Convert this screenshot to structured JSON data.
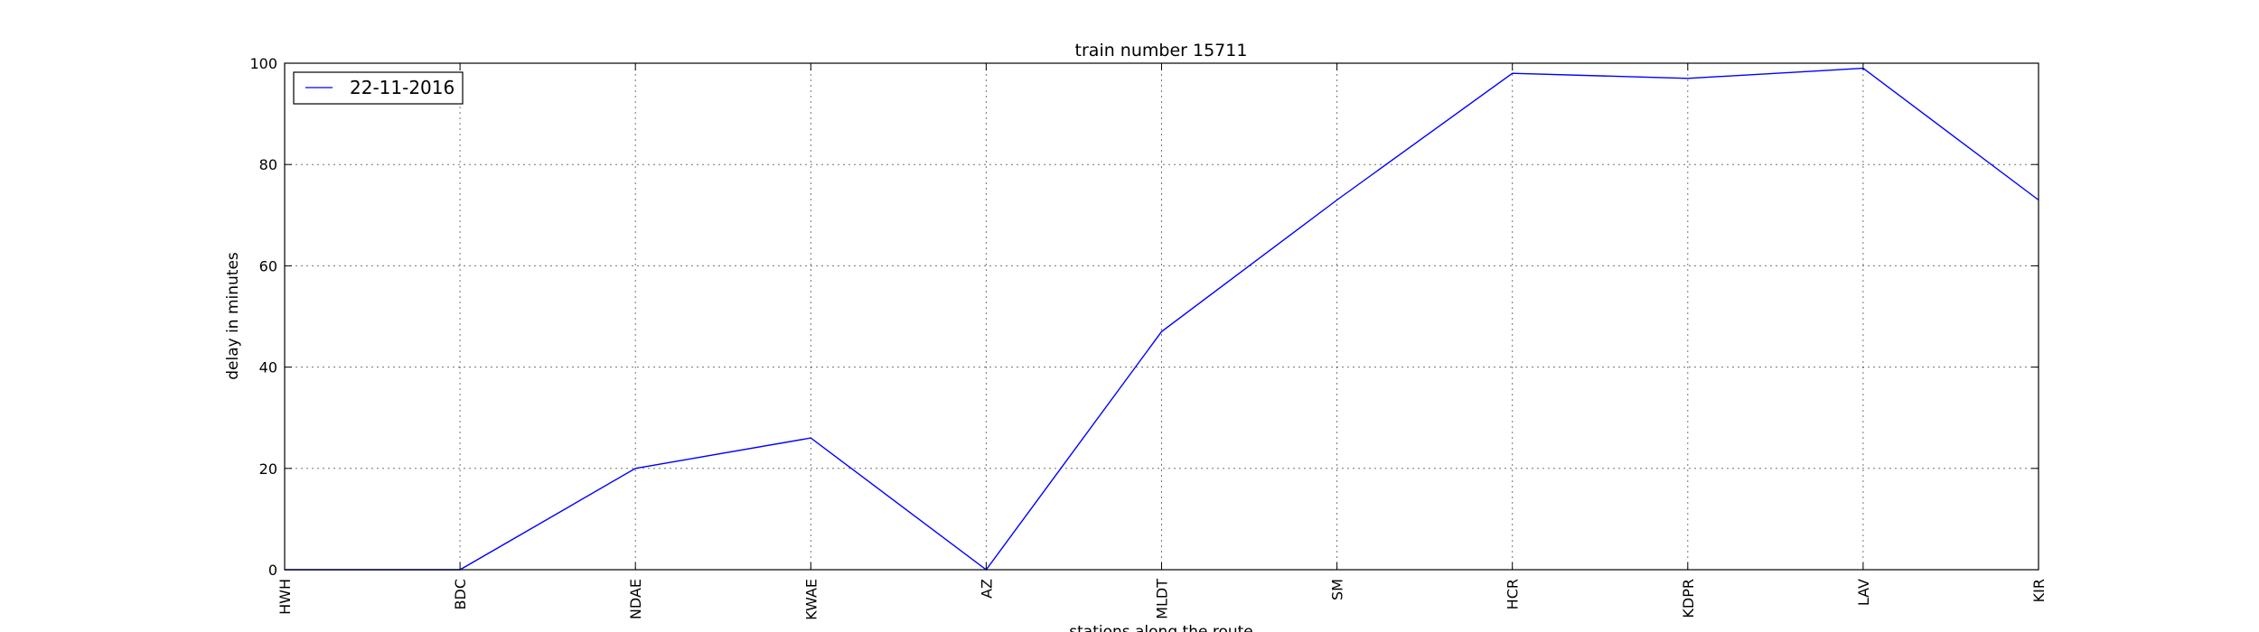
{
  "chart_data": {
    "type": "line",
    "title": "train number 15711",
    "xlabel": "stations along the route",
    "ylabel": "delay in minutes",
    "categories": [
      "HWH",
      "BDC",
      "NDAE",
      "KWAE",
      "AZ",
      "MLDT",
      "SM",
      "HCR",
      "KDPR",
      "LAV",
      "KIR"
    ],
    "series": [
      {
        "name": "22-11-2016",
        "color": "#0000ff",
        "values": [
          0,
          0,
          20,
          26,
          0,
          47,
          73,
          98,
          97,
          99,
          73
        ]
      }
    ],
    "ylim": [
      0,
      100
    ],
    "yticks": [
      0,
      20,
      40,
      60,
      80,
      100
    ],
    "grid": true,
    "legend_position": "top-left"
  }
}
